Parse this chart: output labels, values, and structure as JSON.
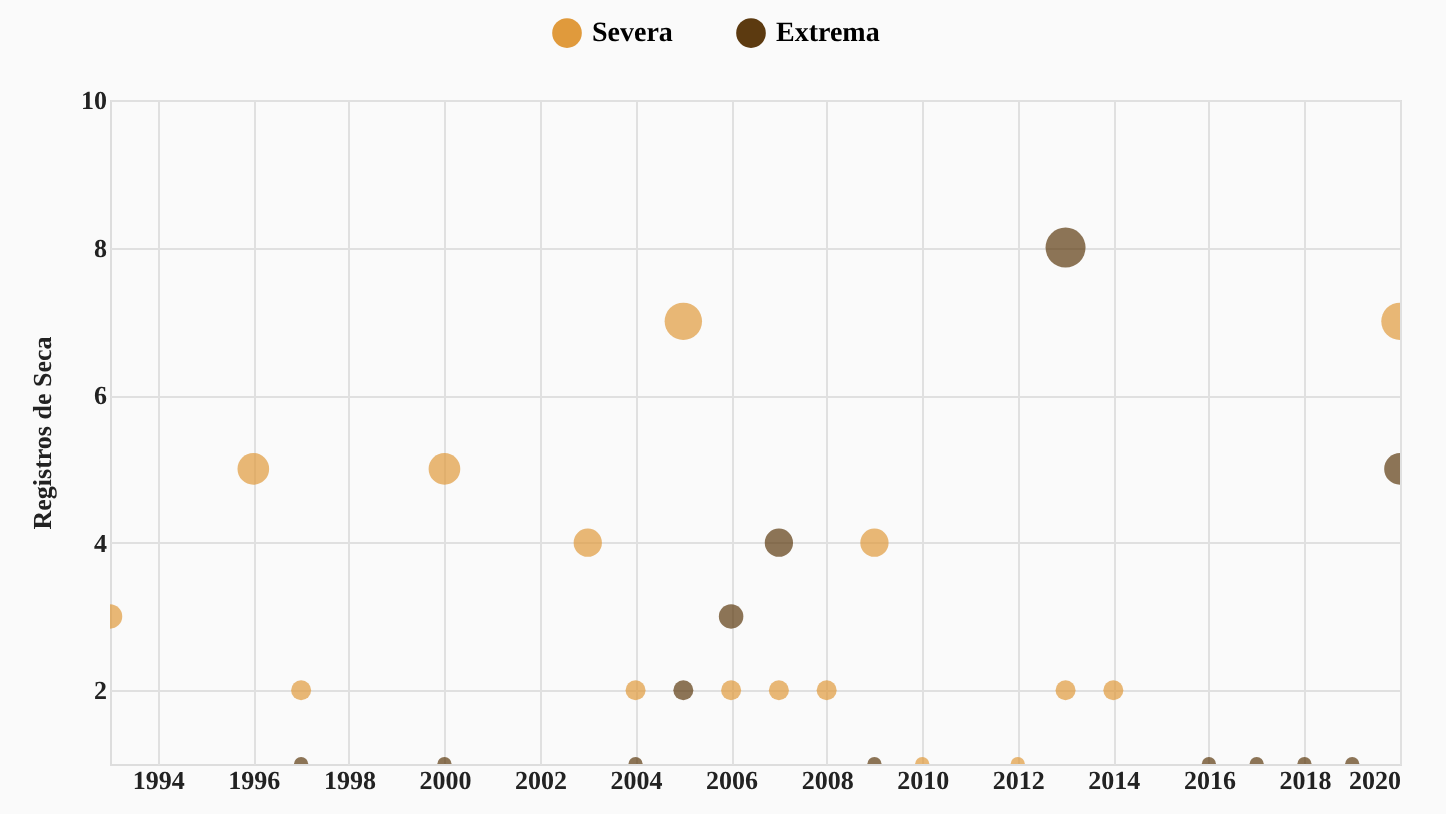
{
  "chart_data": {
    "type": "bubble",
    "ylabel": "Registros de Seca",
    "xlim": [
      1993,
      2020
    ],
    "xticks": [
      1994,
      1996,
      1998,
      2000,
      2002,
      2004,
      2006,
      2008,
      2010,
      2012,
      2014,
      2016,
      2018,
      2020
    ],
    "ylim": [
      1,
      10
    ],
    "yticks": [
      2,
      4,
      6,
      8,
      10
    ],
    "grid": true,
    "legend": "top",
    "series": [
      {
        "name": "Severa",
        "color": "#e09a3c",
        "x": [
          1993,
          1996,
          1997,
          2000,
          2003,
          2004,
          2005,
          2006,
          2007,
          2008,
          2009,
          2010,
          2012,
          2013,
          2014,
          2020
        ],
        "values": [
          3,
          5,
          2,
          5,
          4,
          2,
          7,
          2,
          2,
          2,
          4,
          1,
          1,
          2,
          2,
          7
        ],
        "sizes": [
          0.375,
          0.625,
          0.25,
          0.625,
          0.5,
          0.25,
          0.875,
          0.25,
          0.25,
          0.25,
          0.5,
          0.125,
          0.125,
          0.25,
          0.25,
          0.875
        ]
      },
      {
        "name": "Extrema",
        "color": "#5c3a10",
        "x": [
          1997,
          2000,
          2004,
          2005,
          2006,
          2007,
          2009,
          2013,
          2016,
          2017,
          2018,
          2019,
          2020
        ],
        "values": [
          1,
          1,
          1,
          2,
          3,
          4,
          1,
          8,
          1,
          1,
          1,
          1,
          5
        ],
        "sizes": [
          0.125,
          0.125,
          0.125,
          0.25,
          0.375,
          0.5,
          0.125,
          1,
          0.125,
          0.125,
          0.125,
          0.125,
          0.625
        ]
      }
    ]
  }
}
